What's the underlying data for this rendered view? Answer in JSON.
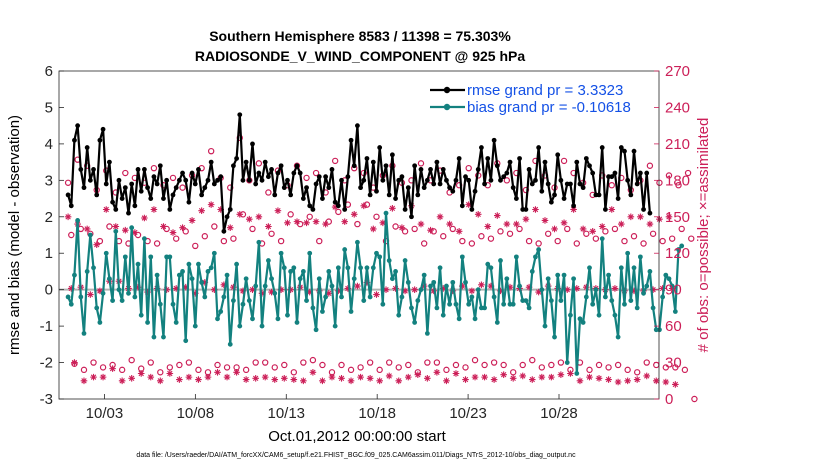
{
  "chart_data": {
    "type": "line",
    "title": "Southern Hemisphere 8583 / 11398 = 75.303%",
    "subtitle": "RADIOSONDE_V_WIND_COMPONENT @ 925 hPa",
    "xlabel": "Oct.01,2012 00:00:00 start",
    "ylabel_left": "rmse and bias (model - observation)",
    "ylabel_right": "# of obs: o=possible; ×=assimilated",
    "footer": "data file: /Users/raeder/DAI/ATM_forcXX/CAM6_setup/f.e21.FHIST_BGC.f09_025.CAM6assim.011/Diags_NTrS_2012-10/obs_diag_output.nc",
    "x_range": [
      0.5,
      33.5
    ],
    "ylim_left": [
      -3,
      6
    ],
    "ylim_right": [
      0,
      270
    ],
    "x_ticks": [
      3,
      8,
      13,
      18,
      23,
      28
    ],
    "x_tick_labels": [
      "10/03",
      "10/08",
      "10/13",
      "10/18",
      "10/23",
      "10/28"
    ],
    "y_ticks_left": [
      -3,
      -2,
      -1,
      0,
      1,
      2,
      3,
      4,
      5,
      6
    ],
    "y_ticks_left_labels": [
      "-3",
      "-2",
      "-1",
      "0",
      "1",
      "2",
      "3",
      "4",
      "5",
      "6"
    ],
    "y_ticks_right": [
      0,
      30,
      60,
      90,
      120,
      150,
      180,
      210,
      240,
      270
    ],
    "y_ticks_right_labels": [
      "0",
      "30",
      "60",
      "90",
      "120",
      "150",
      "180",
      "210",
      "240",
      "270"
    ],
    "legend_position": "top-right",
    "colors": {
      "rmse": "#000000",
      "bias": "#13817f",
      "obs": "#cc1f58",
      "zero_line": "#b3b3b3",
      "legend_text": "#1451e6"
    },
    "series": [
      {
        "name": "rmse grand pr = 3.3323",
        "values": [
          2.6,
          2.3,
          4.1,
          4.5,
          3.3,
          2.8,
          3.9,
          3.0,
          3.3,
          2.6,
          4.1,
          4.4,
          2.9,
          3.5,
          2.4,
          2.2,
          3.0,
          2.5,
          2.8,
          2.1,
          2.9,
          2.3,
          3.3,
          2.7,
          3.3,
          2.8,
          2.5,
          3.1,
          2.9,
          3.4,
          2.5,
          3.0,
          2.2,
          2.6,
          2.8,
          3.0,
          3.2,
          3.0,
          2.4,
          3.2,
          2.9,
          3.3,
          2.6,
          2.8,
          3.0,
          3.5,
          2.9,
          3.0,
          3.1,
          1.6,
          2.0,
          2.2,
          3.4,
          3.6,
          4.8,
          3.0,
          3.5,
          3.0,
          4.0,
          2.9,
          3.2,
          3.0,
          3.5,
          3.1,
          3.3,
          2.6,
          3.2,
          3.4,
          2.8,
          3.0,
          2.6,
          3.2,
          3.4,
          3.2,
          2.5,
          2.8,
          2.3,
          2.2,
          2.9,
          3.1,
          2.5,
          3.1,
          2.8,
          3.3,
          2.4,
          2.3,
          3.0,
          2.2,
          3.1,
          4.1,
          3.4,
          4.5,
          2.8,
          3.0,
          3.6,
          2.6,
          3.5,
          2.7,
          3.9,
          3.0,
          3.4,
          2.6,
          3.7,
          2.5,
          3.0,
          3.1,
          2.2,
          2.8,
          2.0,
          3.4,
          2.6,
          3.3,
          2.8,
          3.0,
          3.3,
          2.9,
          3.5,
          2.9,
          3.3,
          3.0,
          2.8,
          2.7,
          3.0,
          3.6,
          2.3,
          3.1,
          3.0,
          2.2,
          2.7,
          3.3,
          3.9,
          2.9,
          3.6,
          3.0,
          4.1,
          3.4,
          3.0,
          3.1,
          3.2,
          3.5,
          2.8,
          2.5,
          3.6,
          2.2,
          2.2,
          3.3,
          2.9,
          3.0,
          3.9,
          2.7,
          3.5,
          2.9,
          2.4,
          2.6,
          3.7,
          3.0,
          2.5,
          2.9,
          2.9,
          2.3,
          3.5,
          2.9,
          2.8,
          3.6,
          3.4,
          3.2,
          2.6,
          2.6,
          3.9,
          2.2,
          3.1,
          3.1,
          3.2,
          2.5,
          3.9,
          3.8,
          3.0,
          2.6,
          3.8,
          2.9,
          3.2,
          2.2,
          3.2,
          2.1
        ]
      },
      {
        "name": "bias grand pr = -0.10618",
        "values": [
          -0.2,
          -0.4,
          0.4,
          1.9,
          -0.2,
          -1.2,
          0.5,
          1.5,
          0.6,
          -0.5,
          -0.9,
          -0.1,
          1.0,
          0.3,
          -0.3,
          1.6,
          0.0,
          -0.3,
          0.9,
          -0.1,
          1.7,
          -0.2,
          0.7,
          -0.7,
          1.4,
          -0.9,
          0.9,
          -1.3,
          0.4,
          -0.4,
          -1.3,
          0.9,
          0.9,
          -0.4,
          -0.9,
          0.4,
          0.5,
          -1.4,
          0.7,
          0.3,
          -1.0,
          0.7,
          0.2,
          -0.2,
          0.5,
          0.6,
          1.0,
          -0.8,
          -0.6,
          -0.2,
          0.4,
          -1.5,
          -0.3,
          0.7,
          -1.0,
          -0.4,
          0.3,
          -0.3,
          -0.8,
          0.1,
          1.3,
          -1.0,
          0.1,
          0.8,
          0.3,
          -0.1,
          -0.8,
          1.0,
          0.6,
          -0.7,
          0.5,
          0.6,
          -0.9,
          0.3,
          0.5,
          -0.3,
          1.0,
          -0.5,
          -1.1,
          0.3,
          -0.6,
          -0.2,
          0.5,
          0.1,
          -1.0,
          0.6,
          -0.2,
          1.1,
          0.6,
          -0.6,
          0.3,
          1.3,
          0.6,
          -0.3,
          0.6,
          -0.2,
          0.6,
          1.0,
          0.9,
          -0.4,
          2.1,
          0.8,
          0.3,
          0.5,
          -0.7,
          -0.2,
          0.8,
          0.2,
          -0.5,
          -0.9,
          -0.3,
          0.0,
          0.4,
          -1.2,
          0.1,
          0.2,
          -0.5,
          0.6,
          -0.7,
          0.1,
          -0.4,
          0.2,
          -0.4,
          -0.8,
          0.9,
          0.2,
          -0.4,
          -0.2,
          -0.8,
          0.0,
          -0.5,
          -0.5,
          0.7,
          0.6,
          -0.2,
          -0.9,
          0.8,
          -0.4,
          0.3,
          -0.4,
          -0.4,
          0.9,
          0.1,
          -0.3,
          -0.3,
          -0.5,
          0.5,
          0.9,
          1.1,
          0.0,
          -1.0,
          0.3,
          -0.3,
          -1.3,
          0.4,
          -0.3,
          0.4,
          -2.0,
          -0.7,
          0.3,
          -2.3,
          -0.8,
          -0.9,
          -0.2,
          0.6,
          -0.4,
          0.0,
          -0.7,
          1.4,
          -0.2,
          0.4,
          -0.3,
          -0.7,
          -1.3,
          0.6,
          -0.4,
          1.0,
          -0.3,
          0.6,
          -0.5,
          0.9,
          -0.1,
          0.1,
          0.5,
          -0.5,
          -1.1,
          -1.1,
          -0.2,
          0.4,
          0.3,
          0.1,
          -0.6,
          1.1,
          1.2
        ]
      },
      {
        "name": "obs possible",
        "marker": "o",
        "axis": "right",
        "values": [
          178,
          135,
          29,
          197,
          140,
          24,
          192,
          136,
          30,
          172,
          130,
          26,
          188,
          142,
          28,
          170,
          130,
          24,
          186,
          128,
          32,
          182,
          135,
          25,
          178,
          130,
          30,
          190,
          128,
          22,
          176,
          140,
          26,
          182,
          132,
          28,
          174,
          138,
          30,
          184,
          126,
          24,
          190,
          134,
          22,
          204,
          142,
          28,
          182,
          130,
          26,
          174,
          132,
          26,
          215,
          152,
          24,
          180,
          140,
          30,
          194,
          128,
          30,
          170,
          136,
          26,
          188,
          130,
          28,
          176,
          152,
          22,
          192,
          144,
          30,
          182,
          150,
          32,
          186,
          130,
          28,
          170,
          146,
          22,
          196,
          154,
          28,
          180,
          160,
          24,
          190,
          144,
          26,
          186,
          160,
          30,
          174,
          150,
          24,
          184,
          130,
          30,
          192,
          142,
          26,
          178,
          138,
          28,
          180,
          140,
          22,
          194,
          128,
          30,
          180,
          138,
          30,
          188,
          134,
          24,
          170,
          140,
          28,
          176,
          130,
          26,
          190,
          128,
          32,
          184,
          134,
          28,
          176,
          132,
          30,
          194,
          138,
          28,
          180,
          136,
          22,
          186,
          140,
          28,
          172,
          130,
          32,
          196,
          128,
          26,
          184,
          136,
          28,
          174,
          130,
          30,
          196,
          140,
          24,
          186,
          128,
          30,
          178,
          136,
          24,
          168,
          132,
          28,
          184,
          138,
          26,
          176,
          140,
          28,
          182,
          130,
          24,
          172,
          134,
          22,
          180,
          128,
          30,
          192,
          136,
          28,
          178,
          130,
          26,
          184,
          132,
          26,
          176,
          140,
          24,
          186,
          132,
          0
        ]
      },
      {
        "name": "obs assimilated",
        "marker": "*",
        "axis": "right",
        "values": [
          150,
          91,
          30,
          144,
          92,
          15,
          140,
          86,
          18,
          127,
          89,
          18,
          156,
          97,
          25,
          142,
          97,
          15,
          139,
          91,
          17,
          137,
          92,
          21,
          149,
          88,
          18,
          156,
          91,
          15,
          142,
          90,
          21,
          137,
          91,
          16,
          141,
          92,
          18,
          147,
          87,
          16,
          155,
          96,
          18,
          160,
          90,
          22,
          156,
          94,
          18,
          141,
          92,
          22,
          152,
          89,
          16,
          148,
          90,
          17,
          150,
          87,
          18,
          142,
          88,
          16,
          155,
          90,
          17,
          145,
          90,
          16,
          146,
          92,
          15,
          145,
          88,
          22,
          146,
          89,
          15,
          144,
          87,
          18,
          158,
          89,
          17,
          146,
          91,
          15,
          152,
          93,
          18,
          159,
          96,
          17,
          140,
          86,
          15,
          145,
          90,
          19,
          157,
          91,
          15,
          141,
          89,
          18,
          159,
          90,
          20,
          144,
          93,
          17,
          139,
          89,
          22,
          150,
          91,
          15,
          144,
          89,
          21,
          138,
          93,
          16,
          160,
          89,
          18,
          152,
          94,
          18,
          142,
          93,
          16,
          151,
          89,
          20,
          144,
          92,
          17,
          144,
          91,
          19,
          148,
          92,
          16,
          156,
          88,
          18,
          147,
          93,
          18,
          140,
          91,
          20,
          145,
          90,
          21,
          156,
          91,
          15,
          140,
          92,
          18,
          138,
          91,
          17,
          142,
          90,
          16,
          156,
          91,
          14,
          144,
          89,
          15,
          150,
          89,
          16,
          150,
          89,
          19,
          144,
          90,
          15,
          148,
          91,
          14,
          150,
          91,
          12
        ]
      }
    ]
  }
}
